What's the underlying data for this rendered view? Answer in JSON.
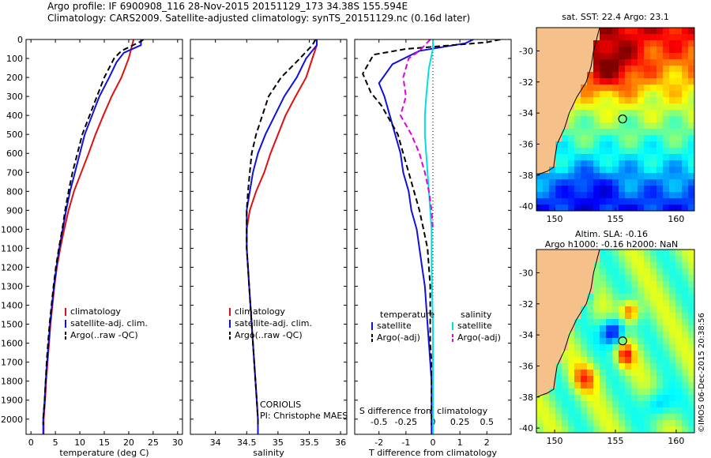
{
  "header": {
    "title_line1": "Argo profile: IF 6900908_116 28-Nov-2015 20151129_173 34.38S 155.594E",
    "title_line2": "Climatology: CARS2009. Satellite-adjusted climatology: synTS_20151129.nc (0.16d later)"
  },
  "footer_stamp": "©IMOS 06-Dec-2015 20:38:56",
  "credit": {
    "line1": "CORIOLIS",
    "line2": "PI: Christophe MAES"
  },
  "colors": {
    "climatology": "#e01010",
    "satellite": "#1010e0",
    "argo": "#000000",
    "sat_salinity": "#00e0e0",
    "argo_salinity": "#e000e0",
    "land": "#f5c08a"
  },
  "chart_data": [
    {
      "type": "line",
      "title": "",
      "xlabel": "temperature (deg C)",
      "ylabel": "",
      "xlim": [
        -1,
        31
      ],
      "ylim": [
        2080,
        0
      ],
      "y_inverted": true,
      "xticks": [
        "0",
        "5",
        "10",
        "15",
        "20",
        "25",
        "30"
      ],
      "yticks": [
        "0",
        "100",
        "200",
        "300",
        "400",
        "500",
        "600",
        "700",
        "800",
        "900",
        "1000",
        "1100",
        "1200",
        "1300",
        "1400",
        "1500",
        "1600",
        "1700",
        "1800",
        "1900",
        "2000"
      ],
      "legend": [
        "climatology",
        "satellite-adj. clim.",
        "Argo(..raw -QC)"
      ],
      "legend_position": "lower-middle",
      "series": [
        {
          "name": "climatology",
          "color": "#e01010",
          "dash": "solid",
          "points": [
            [
              21,
              0
            ],
            [
              20.5,
              50
            ],
            [
              20,
              100
            ],
            [
              18.5,
              200
            ],
            [
              16.5,
              300
            ],
            [
              14.8,
              400
            ],
            [
              13.2,
              500
            ],
            [
              11.8,
              600
            ],
            [
              10.3,
              700
            ],
            [
              8.8,
              800
            ],
            [
              7.7,
              900
            ],
            [
              6.8,
              1000
            ],
            [
              6,
              1100
            ],
            [
              5.3,
              1200
            ],
            [
              4.8,
              1300
            ],
            [
              4.4,
              1400
            ],
            [
              4,
              1500
            ],
            [
              3.7,
              1600
            ],
            [
              3.4,
              1700
            ],
            [
              3.1,
              1800
            ],
            [
              2.9,
              1900
            ],
            [
              2.6,
              2000
            ],
            [
              2.6,
              2080
            ]
          ]
        },
        {
          "name": "satellite-adj. clim.",
          "color": "#1010e0",
          "dash": "solid",
          "points": [
            [
              22.5,
              0
            ],
            [
              22.5,
              30
            ],
            [
              19,
              70
            ],
            [
              17.5,
              120
            ],
            [
              16,
              200
            ],
            [
              14,
              300
            ],
            [
              12.5,
              400
            ],
            [
              11,
              500
            ],
            [
              10,
              600
            ],
            [
              9,
              700
            ],
            [
              8,
              800
            ],
            [
              7.2,
              900
            ],
            [
              6.5,
              1000
            ],
            [
              5.8,
              1100
            ],
            [
              5.2,
              1200
            ],
            [
              4.7,
              1300
            ],
            [
              4.3,
              1400
            ],
            [
              3.9,
              1500
            ],
            [
              3.6,
              1600
            ],
            [
              3.3,
              1700
            ],
            [
              3,
              1800
            ],
            [
              2.8,
              1900
            ],
            [
              2.5,
              2000
            ],
            [
              2.5,
              2080
            ]
          ]
        },
        {
          "name": "Argo(..raw -QC)",
          "color": "#000000",
          "dash": "dash",
          "points": [
            [
              23,
              0
            ],
            [
              22.5,
              10
            ],
            [
              18.5,
              60
            ],
            [
              17,
              100
            ],
            [
              15,
              200
            ],
            [
              13.5,
              300
            ],
            [
              12,
              400
            ],
            [
              10.5,
              500
            ],
            [
              9.5,
              600
            ],
            [
              8.5,
              700
            ],
            [
              7.7,
              800
            ],
            [
              7,
              900
            ],
            [
              6.4,
              1000
            ],
            [
              5.7,
              1100
            ],
            [
              5.1,
              1200
            ],
            [
              4.6,
              1300
            ],
            [
              4.2,
              1400
            ],
            [
              3.8,
              1500
            ],
            [
              3.5,
              1600
            ],
            [
              3.2,
              1700
            ],
            [
              3,
              1800
            ],
            [
              2.8,
              1900
            ],
            [
              2.5,
              2000
            ],
            [
              2.5,
              2030
            ]
          ]
        }
      ]
    },
    {
      "type": "line",
      "title": "",
      "xlabel": "salinity",
      "ylabel": "",
      "xlim": [
        33.6,
        36.1
      ],
      "ylim": [
        2080,
        0
      ],
      "y_inverted": true,
      "xticks": [
        "34",
        "34.5",
        "35",
        "35.5",
        "36"
      ],
      "legend": [
        "climatology",
        "satellite-adj. clim.",
        "Argo(..raw -QC)"
      ],
      "legend_position": "lower-middle",
      "series": [
        {
          "name": "climatology",
          "color": "#e01010",
          "dash": "solid",
          "points": [
            [
              35.62,
              0
            ],
            [
              35.62,
              30
            ],
            [
              35.55,
              100
            ],
            [
              35.45,
              200
            ],
            [
              35.28,
              300
            ],
            [
              35.12,
              400
            ],
            [
              35,
              500
            ],
            [
              34.88,
              600
            ],
            [
              34.78,
              700
            ],
            [
              34.65,
              800
            ],
            [
              34.55,
              900
            ],
            [
              34.5,
              1000
            ],
            [
              34.5,
              1100
            ],
            [
              34.52,
              1200
            ],
            [
              34.54,
              1300
            ],
            [
              34.56,
              1400
            ],
            [
              34.58,
              1500
            ],
            [
              34.6,
              1600
            ],
            [
              34.62,
              1700
            ],
            [
              34.64,
              1800
            ],
            [
              34.66,
              1900
            ],
            [
              34.68,
              2000
            ],
            [
              34.68,
              2080
            ]
          ]
        },
        {
          "name": "satellite-adj. clim.",
          "color": "#1010e0",
          "dash": "solid",
          "points": [
            [
              35.62,
              0
            ],
            [
              35.62,
              30
            ],
            [
              35.45,
              100
            ],
            [
              35.3,
              200
            ],
            [
              35.1,
              300
            ],
            [
              34.95,
              400
            ],
            [
              34.8,
              500
            ],
            [
              34.68,
              600
            ],
            [
              34.6,
              700
            ],
            [
              34.55,
              800
            ],
            [
              34.5,
              900
            ],
            [
              34.5,
              1000
            ],
            [
              34.5,
              1100
            ],
            [
              34.52,
              1200
            ],
            [
              34.54,
              1300
            ],
            [
              34.56,
              1400
            ],
            [
              34.58,
              1500
            ],
            [
              34.6,
              1600
            ],
            [
              34.62,
              1700
            ],
            [
              34.64,
              1800
            ],
            [
              34.66,
              1900
            ],
            [
              34.68,
              2000
            ],
            [
              34.68,
              2080
            ]
          ]
        },
        {
          "name": "Argo(..raw -QC)",
          "color": "#000000",
          "dash": "dash",
          "points": [
            [
              35.6,
              0
            ],
            [
              35.55,
              30
            ],
            [
              35.35,
              100
            ],
            [
              35.05,
              200
            ],
            [
              34.85,
              300
            ],
            [
              34.75,
              400
            ],
            [
              34.65,
              500
            ],
            [
              34.58,
              600
            ],
            [
              34.55,
              700
            ],
            [
              34.52,
              800
            ],
            [
              34.5,
              900
            ],
            [
              34.5,
              1000
            ],
            [
              34.5,
              1100
            ],
            [
              34.52,
              1200
            ],
            [
              34.54,
              1300
            ],
            [
              34.56,
              1400
            ],
            [
              34.58,
              1500
            ],
            [
              34.6,
              1600
            ],
            [
              34.62,
              1700
            ],
            [
              34.64,
              1800
            ],
            [
              34.66,
              1900
            ],
            [
              34.68,
              2000
            ],
            [
              34.68,
              2030
            ]
          ]
        }
      ]
    },
    {
      "type": "line",
      "title": "",
      "xlabel": "T difference from climatology",
      "xlabel_secondary": "S difference from climatology",
      "ylabel": "",
      "xlim": [
        -2.9,
        2.9
      ],
      "ylim": [
        2080,
        0
      ],
      "y_inverted": true,
      "xticks": [
        "-2",
        "-1",
        "0",
        "1",
        "2"
      ],
      "xticks_secondary": [
        "-0.5",
        "-0.25",
        "0",
        "0.25",
        "0.5"
      ],
      "legend_titles": [
        "temperature",
        "salinity"
      ],
      "legend": [
        "satellite",
        "Argo(-adj)",
        "satellite",
        "Argo(-adj)"
      ],
      "legend_position": "lower-middle",
      "series": [
        {
          "name": "temperature satellite",
          "color": "#1010e0",
          "dash": "solid",
          "points": [
            [
              1.5,
              0
            ],
            [
              1.2,
              20
            ],
            [
              -0.5,
              60
            ],
            [
              -1.5,
              130
            ],
            [
              -2,
              230
            ],
            [
              -1.8,
              300
            ],
            [
              -1.6,
              400
            ],
            [
              -1.4,
              500
            ],
            [
              -1.2,
              600
            ],
            [
              -1.1,
              700
            ],
            [
              -0.9,
              800
            ],
            [
              -0.8,
              900
            ],
            [
              -0.6,
              1000
            ],
            [
              -0.5,
              1100
            ],
            [
              -0.4,
              1200
            ],
            [
              -0.3,
              1300
            ],
            [
              -0.25,
              1400
            ],
            [
              -0.2,
              1500
            ],
            [
              -0.15,
              1600
            ],
            [
              -0.1,
              1700
            ],
            [
              -0.05,
              1800
            ],
            [
              -0.05,
              1900
            ],
            [
              -0.05,
              2000
            ],
            [
              -0.05,
              2080
            ]
          ]
        },
        {
          "name": "temperature Argo(-adj)",
          "color": "#000000",
          "dash": "dash",
          "points": [
            [
              2.5,
              0
            ],
            [
              2,
              15
            ],
            [
              -1,
              50
            ],
            [
              -2.2,
              80
            ],
            [
              -2.6,
              180
            ],
            [
              -2.3,
              280
            ],
            [
              -1.9,
              350
            ],
            [
              -1.5,
              450
            ],
            [
              -1.3,
              500
            ],
            [
              -1.1,
              600
            ],
            [
              -0.9,
              700
            ],
            [
              -0.7,
              800
            ],
            [
              -0.5,
              900
            ],
            [
              -0.35,
              1000
            ],
            [
              -0.2,
              1100
            ],
            [
              -0.15,
              1200
            ],
            [
              -0.1,
              1300
            ],
            [
              -0.1,
              1400
            ],
            [
              -0.1,
              1500
            ],
            [
              -0.1,
              1600
            ],
            [
              -0.05,
              1700
            ],
            [
              -0.05,
              1800
            ],
            [
              -0.05,
              1900
            ],
            [
              -0.05,
              2000
            ],
            [
              -0.05,
              2030
            ]
          ]
        },
        {
          "name": "salinity satellite",
          "color": "#00e0e0",
          "dash": "solid",
          "points": [
            [
              0,
              0
            ],
            [
              0,
              50
            ],
            [
              -0.15,
              150
            ],
            [
              -0.25,
              300
            ],
            [
              -0.3,
              400
            ],
            [
              -0.3,
              500
            ],
            [
              -0.25,
              600
            ],
            [
              -0.2,
              700
            ],
            [
              -0.15,
              800
            ],
            [
              -0.1,
              900
            ],
            [
              -0.05,
              1000
            ],
            [
              -0.05,
              1200
            ],
            [
              0,
              1500
            ],
            [
              0,
              2080
            ]
          ]
        },
        {
          "name": "salinity Argo(-adj)",
          "color": "#e000e0",
          "dash": "dash",
          "points": [
            [
              -0.1,
              0
            ],
            [
              -0.5,
              60
            ],
            [
              -0.9,
              100
            ],
            [
              -1.1,
              200
            ],
            [
              -1,
              300
            ],
            [
              -1.2,
              400
            ],
            [
              -0.8,
              500
            ],
            [
              -0.5,
              600
            ],
            [
              -0.3,
              700
            ],
            [
              -0.15,
              800
            ],
            [
              -0.05,
              900
            ],
            [
              0,
              1000
            ]
          ]
        }
      ]
    },
    {
      "type": "heatmap",
      "title": "sat. SST: 22.4  Argo: 23.1",
      "xlim": [
        148.5,
        161.5
      ],
      "ylim": [
        -40.3,
        -28.5
      ],
      "xticks": [
        "150",
        "155",
        "160"
      ],
      "yticks": [
        "-30",
        "-32",
        "-34",
        "-36",
        "-38",
        "-40"
      ],
      "argo_position": {
        "lon": 155.594,
        "lat": -34.38
      },
      "field": "SST",
      "sat_sst": 22.4,
      "argo_sst": 23.1
    },
    {
      "type": "heatmap",
      "title": "Altim. SLA: -0.16",
      "subtitle": "Argo h1000: -0.16 h2000: NaN",
      "xlim": [
        148.5,
        161.5
      ],
      "ylim": [
        -40.3,
        -28.5
      ],
      "xticks": [
        "150",
        "155",
        "160"
      ],
      "yticks": [
        "-30",
        "-32",
        "-34",
        "-36",
        "-38",
        "-40"
      ],
      "argo_position": {
        "lon": 155.594,
        "lat": -34.38
      },
      "field": "SLA",
      "altim_sla": -0.16,
      "argo_h1000": -0.16,
      "argo_h2000": "NaN"
    }
  ]
}
